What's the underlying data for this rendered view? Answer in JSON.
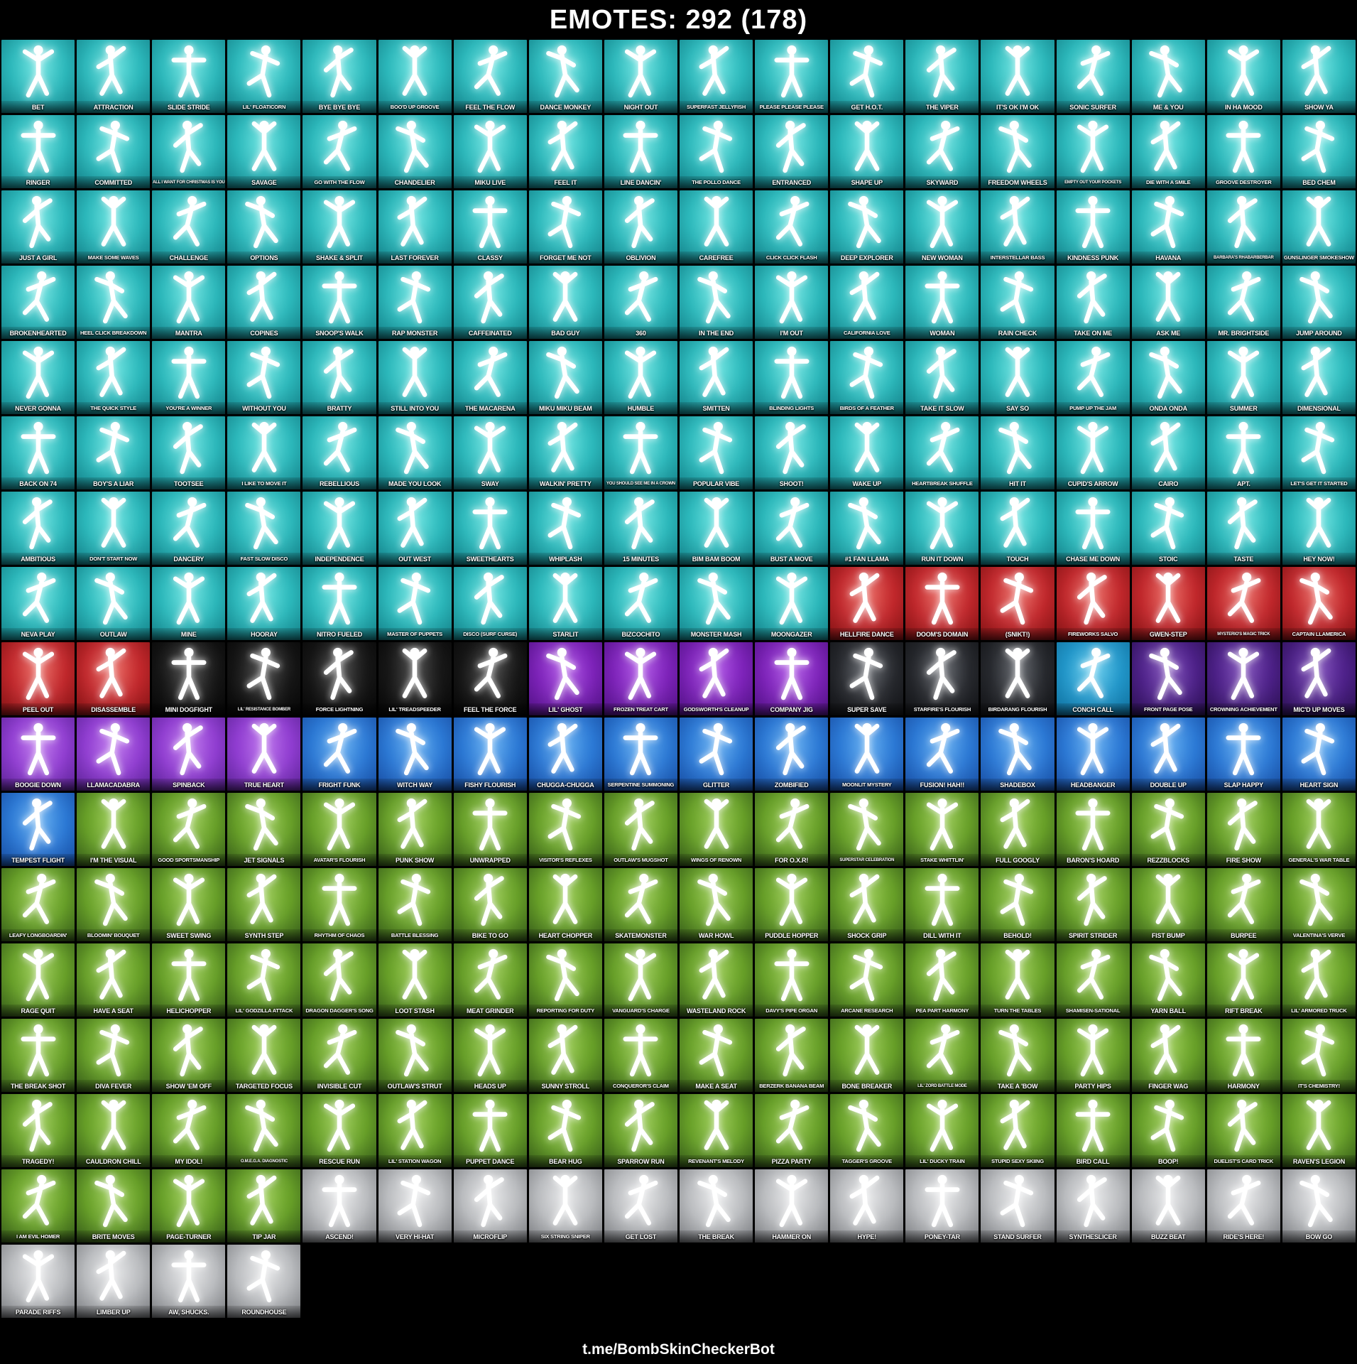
{
  "header": {
    "title": "EMOTES: 292 (178)"
  },
  "footer": {
    "link": "t.me/BombSkinCheckerBot"
  },
  "grid": {
    "columns": 18,
    "total_tiles": 292
  },
  "rarity_colors": {
    "icon": {
      "center": "#55dedb",
      "mid": "#2bb7ba",
      "edge": "#137d85"
    },
    "marvel": {
      "center": "#e5514a",
      "mid": "#c0272b",
      "edge": "#7e1113"
    },
    "starwars": {
      "center": "#2a2a2a",
      "mid": "#161616",
      "edge": "#050505"
    },
    "dark": {
      "center": "#a13ae0",
      "mid": "#7c22b8",
      "edge": "#4e1180"
    },
    "dc": {
      "center": "#4a4e55",
      "mid": "#26282d",
      "edge": "#101114"
    },
    "dreamworks": {
      "center": "#4fc4ea",
      "mid": "#2196c9",
      "edge": "#0f6d9a"
    },
    "legends": {
      "center": "#6b34ae",
      "mid": "#4c2087",
      "edge": "#2a1050"
    },
    "epic": {
      "center": "#b05ce8",
      "mid": "#8f3cd0",
      "edge": "#5a2394"
    },
    "rare": {
      "center": "#4aa0ee",
      "mid": "#2b78d4",
      "edge": "#174a9e"
    },
    "uncommon": {
      "center": "#8cc43e",
      "mid": "#669e27",
      "edge": "#33571a"
    },
    "common": {
      "center": "#e2e3e5",
      "mid": "#b9bbbe",
      "edge": "#77797d"
    }
  },
  "groups": [
    {
      "rarity": "icon",
      "names": [
        "BET",
        "ATTRACTION",
        "SLIDE STRIDE",
        "LIL' FLOATICORN",
        "BYE BYE BYE",
        "BOO'D UP GROOVE",
        "FEEL THE FLOW",
        "DANCE MONKEY",
        "NIGHT OUT",
        "SUPERFAST JELLYFISH",
        "PLEASE PLEASE PLEASE",
        "GET H.O.T.",
        "THE VIPER",
        "IT'S OK I'M OK",
        "SONIC SURFER",
        "ME & YOU",
        "IN HA MOOD",
        "SHOW YA",
        "RINGER",
        "COMMITTED",
        "ALL I WANT FOR CHRISTMAS IS YOU",
        "SAVAGE",
        "GO WITH THE FLOW",
        "CHANDELIER",
        "MIKU LIVE",
        "FEEL IT",
        "LINE DANCIN'",
        "THE POLLO DANCE",
        "ENTRANCED",
        "SHAPE UP",
        "SKYWARD",
        "FREEDOM WHEELS",
        "EMPTY OUT YOUR POCKETS",
        "DIE WITH A SMILE",
        "GROOVE DESTROYER",
        "BED CHEM",
        "JUST A GIRL",
        "MAKE SOME WAVES",
        "CHALLENGE",
        "OPTIONS",
        "SHAKE & SPLIT",
        "LAST FOREVER",
        "CLASSY",
        "FORGET ME NOT",
        "OBLIVION",
        "CAREFREE",
        "CLICK CLICK FLASH",
        "DEEP EXPLORER",
        "NEW WOMAN",
        "INTERSTELLAR BASS",
        "KINDNESS PUNK",
        "HAVANA",
        "BARBARA'S RHABARBERBAR",
        "GUNSLINGER SMOKESHOW",
        "BROKENHEARTED",
        "HEEL CLICK BREAKDOWN",
        "MANTRA",
        "COPINES",
        "SNOOP'S WALK",
        "RAP MONSTER",
        "CAFFEINATED",
        "BAD GUY",
        "360",
        "IN THE END",
        "I'M OUT",
        "CALIFORNIA LOVE",
        "WOMAN",
        "RAIN CHECK",
        "TAKE ON ME",
        "ASK ME",
        "MR. BRIGHTSIDE",
        "JUMP AROUND",
        "NEVER GONNA",
        "THE QUICK STYLE",
        "YOU'RE A WINNER",
        "WITHOUT YOU",
        "BRATTY",
        "STILL INTO YOU",
        "THE MACARENA",
        "MIKU MIKU BEAM",
        "HUMBLE",
        "SMITTEN",
        "BLINDING LIGHTS",
        "BIRDS OF A FEATHER",
        "TAKE IT SLOW",
        "SAY SO",
        "PUMP UP THE JAM",
        "ONDA ONDA",
        "SUMMER",
        "DIMENSIONAL",
        "BACK ON 74",
        "BOY'S A LIAR",
        "TOOTSEE",
        "I LIKE TO MOVE IT",
        "REBELLIOUS",
        "MADE YOU LOOK",
        "SWAY",
        "WALKIN' PRETTY",
        "YOU SHOULD SEE ME IN A CROWN",
        "POPULAR VIBE",
        "SHOOT!",
        "WAKE UP",
        "HEARTBREAK SHUFFLE",
        "HIT IT",
        "CUPID'S ARROW",
        "CAIRO",
        "APT.",
        "LET'S GET IT STARTED",
        "AMBITIOUS",
        "DON'T START NOW",
        "DANCERY",
        "FAST SLOW DISCO",
        "INDEPENDENCE",
        "OUT WEST",
        "SWEETHEARTS",
        "WHIPLASH",
        "15 MINUTES",
        "BIM BAM BOOM",
        "BUST A MOVE",
        "#1 FAN LLAMA",
        "RUN IT DOWN",
        "TOUCH",
        "CHASE ME DOWN",
        "STOIC",
        "TASTE",
        "HEY NOW!",
        "NEVA PLAY",
        "OUTLAW",
        "MINE",
        "HOORAY",
        "NITRO FUELED",
        "MASTER OF PUPPETS",
        "DISCO (SURF CURSE)",
        "STARLIT",
        "BIZCOCHITO",
        "MONSTER MASH",
        "MOONGAZER"
      ]
    },
    {
      "rarity": "marvel",
      "names": [
        "HELLFIRE DANCE",
        "DOOM'S DOMAIN",
        "(SNIKT!)",
        "FIREWORKS SALVO",
        "GWEN-STEP",
        "MYSTERIO'S MAGIC TRICK",
        "CAPTAIN LLAMERICA",
        "PEEL OUT",
        "DISASSEMBLE"
      ]
    },
    {
      "rarity": "starwars",
      "names": [
        "MINI DOGFIGHT",
        "LIL' RESISTANCE BOMBER",
        "FORCE LIGHTNING",
        "LIL' TREADSPEEDER",
        "FEEL THE FORCE"
      ]
    },
    {
      "rarity": "dark",
      "names": [
        "LIL' GHOST",
        "FROZEN TREAT CART",
        "GODSWORTH'S CLEANUP",
        "COMPANY JIG"
      ]
    },
    {
      "rarity": "dc",
      "names": [
        "SUPER SAVE",
        "STARFIRE'S FLOURISH",
        "BIRDARANG FLOURISH"
      ]
    },
    {
      "rarity": "dreamworks",
      "names": [
        "CONCH CALL"
      ]
    },
    {
      "rarity": "legends",
      "names": [
        "FRONT PAGE POSE",
        "CROWNING ACHIEVEMENT",
        "MIC'D UP MOVES"
      ]
    },
    {
      "rarity": "epic",
      "names": [
        "BOOGIE DOWN",
        "LLAMACADABRA",
        "SPINBACK",
        "TRUE HEART"
      ]
    },
    {
      "rarity": "rare",
      "names": [
        "FRIGHT FUNK",
        "WITCH WAY",
        "FISHY FLOURISH",
        "CHUGGA-CHUGGA",
        "SERPENTINE SUMMONING",
        "GLITTER",
        "ZOMBIFIED",
        "MOONLIT MYSTERY",
        "FUSION! HAH!!",
        "SHADEBOX",
        "HEADBANGER",
        "DOUBLE UP",
        "SLAP HAPPY",
        "HEART SIGN",
        "TEMPEST FLIGHT"
      ]
    },
    {
      "rarity": "uncommon",
      "names": [
        "I'M THE VISUAL",
        "GOOD SPORTSMANSHIP",
        "JET SIGNALS",
        "AVATAR'S FLOURISH",
        "PUNK SHOW",
        "UNWRAPPED",
        "VISITOR'S REFLEXES",
        "OUTLAW'S MUGSHOT",
        "WINGS OF RENOWN",
        "FOR O.X.R!",
        "SUPERSTAR CELEBRATION",
        "STAKE WHITTLIN'",
        "FULL GOOGLY",
        "BARON'S HOARD",
        "REZZBLOCKS",
        "FIRE SHOW",
        "GENERAL'S WAR TABLE",
        "LEAFY LONGBOARDIN'",
        "BLOOMIN' BOUQUET",
        "SWEET SWING",
        "SYNTH STEP",
        "RHYTHM OF CHAOS",
        "BATTLE BLESSING",
        "BIKE TO GO",
        "HEART CHOPPER",
        "SKATEMONSTER",
        "WAR HOWL",
        "PUDDLE HOPPER",
        "SHOCK GRIP",
        "DILL WITH IT",
        "BEHOLD!",
        "SPIRIT STRIDER",
        "FIST BUMP",
        "BURPEE",
        "VALENTINA'S VERVE",
        "RAGE QUIT",
        "HAVE A SEAT",
        "HELICHOPPER",
        "LIL' GODZILLA ATTACK",
        "DRAGON DAGGER'S SONG",
        "LOOT STASH",
        "MEAT GRINDER",
        "REPORTING FOR DUTY",
        "VANGUARD'S CHARGE",
        "WASTELAND ROCK",
        "DAVY'S PIPE ORGAN",
        "ARCANE RESEARCH",
        "PEA PART HARMONY",
        "TURN THE TABLES",
        "SHAMISEN-SATIONAL",
        "YARN BALL",
        "RIFT BREAK",
        "LIL' ARMORED TRUCK",
        "THE BREAK SHOT",
        "DIVA FEVER",
        "SHOW 'EM OFF",
        "TARGETED FOCUS",
        "INVISIBLE CUT",
        "OUTLAW'S STRUT",
        "HEADS UP",
        "SUNNY STROLL",
        "CONQUEROR'S CLAIM",
        "MAKE A SEAT",
        "BERZERK BANANA BEAM",
        "BONE BREAKER",
        "LIL' ZORD BATTLE MODE",
        "TAKE A 'BOW",
        "PARTY HIPS",
        "FINGER WAG",
        "HARMONY",
        "IT'S CHEMISTRY!",
        "TRAGEDY!",
        "CAULDRON CHILL",
        "MY IDOL!",
        "O.M.E.G.A. DIAGNOSTIC",
        "RESCUE RUN",
        "LIL' STATION WAGON",
        "PUPPET DANCE",
        "BEAR HUG",
        "SPARROW RUN",
        "REVENANT'S MELODY",
        "PIZZA PARTY",
        "TAGGER'S GROOVE",
        "LIL' DUCKY TRAIN",
        "STUPID SEXY SKIING",
        "BIRD CALL",
        "BOOP!",
        "DUELIST'S CARD TRICK",
        "RAVEN'S LEGION",
        "I AM EVIL HOMER",
        "BRITE MOVES",
        "PAGE-TURNER",
        "TIP JAR"
      ]
    },
    {
      "rarity": "common",
      "names": [
        "ASCEND!",
        "VERY HI-HAT",
        "MICROFLIP",
        "SIX STRING SNIPER",
        "GET LOST",
        "THE BREAK",
        "HAMMER ON",
        "HYPE!",
        "PONEY-TAR",
        "STAND SURFER",
        "SYNTHESLICER",
        "BUZZ BEAT",
        "RIDE'S HERE!",
        "BOW GO",
        "PARADE RIFFS",
        "LIMBER UP",
        "AW, SHUCKS.",
        "ROUNDHOUSE"
      ]
    }
  ]
}
